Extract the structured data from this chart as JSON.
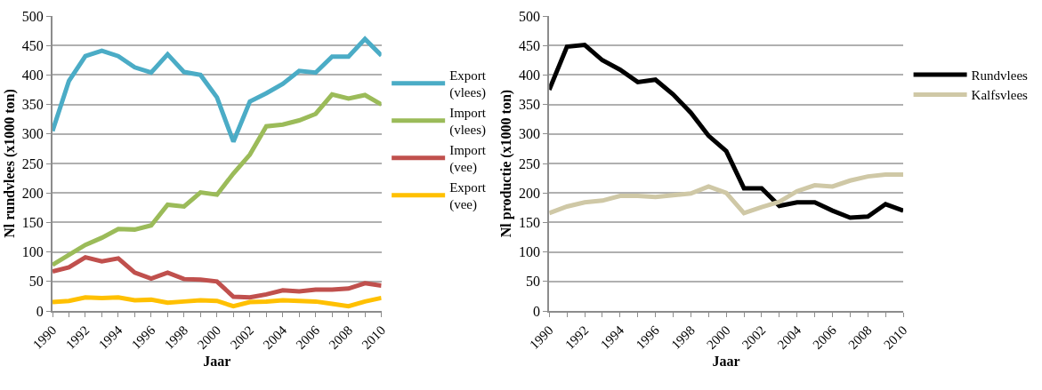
{
  "chart_data": [
    {
      "type": "line",
      "xlabel": "Jaar",
      "ylabel": "Nl rundvlees (x1000 ton)",
      "x": [
        1990,
        1991,
        1992,
        1993,
        1994,
        1995,
        1996,
        1997,
        1998,
        1999,
        2000,
        2001,
        2002,
        2003,
        2004,
        2005,
        2006,
        2007,
        2008,
        2009,
        2010
      ],
      "xlim": [
        1990,
        2010
      ],
      "xticks": [
        1990,
        {
          "value": 1991,
          "label": null
        },
        1992,
        {
          "value": 1993,
          "label": null
        },
        1994,
        {
          "value": 1995,
          "label": null
        },
        1996,
        {
          "value": 1997,
          "label": null
        },
        1998,
        {
          "value": 1999,
          "label": null
        },
        2000,
        {
          "value": 2001,
          "label": null
        },
        2002,
        {
          "value": 2003,
          "label": null
        },
        2004,
        {
          "value": 2005,
          "label": null
        },
        2006,
        {
          "value": 2007,
          "label": null
        },
        2008,
        {
          "value": 2009,
          "label": null
        },
        2010
      ],
      "ylim": [
        0,
        500
      ],
      "yticks": [
        0,
        50,
        100,
        150,
        200,
        250,
        300,
        350,
        400,
        450,
        500
      ],
      "grid": "y",
      "legend": "right",
      "series": [
        {
          "name": "Export (vlees)",
          "color": "#4bacc6",
          "values": [
            305,
            390,
            432,
            441,
            432,
            413,
            404,
            435,
            405,
            400,
            362,
            287,
            355,
            369,
            385,
            407,
            404,
            431,
            431,
            461,
            433
          ]
        },
        {
          "name": "Import (vlees)",
          "color": "#9bbb59",
          "values": [
            78,
            95,
            112,
            124,
            139,
            138,
            145,
            180,
            177,
            201,
            197,
            233,
            265,
            313,
            316,
            323,
            334,
            367,
            360,
            366,
            350
          ]
        },
        {
          "name": "Import (vee)",
          "color": "#c0504d",
          "values": [
            67,
            74,
            91,
            84,
            89,
            65,
            55,
            65,
            54,
            53,
            50,
            24,
            23,
            28,
            35,
            33,
            36,
            36,
            38,
            47,
            43
          ]
        },
        {
          "name": "Export (vee)",
          "color": "#ffc000",
          "values": [
            15,
            17,
            23,
            22,
            23,
            18,
            19,
            14,
            16,
            18,
            17,
            8,
            15,
            16,
            18,
            17,
            16,
            12,
            8,
            16,
            22
          ]
        }
      ]
    },
    {
      "type": "line",
      "xlabel": "Jaar",
      "ylabel": "Nl productie (x1000 ton)",
      "x": [
        1990,
        1991,
        1992,
        1993,
        1994,
        1995,
        1996,
        1997,
        1998,
        1999,
        2000,
        2001,
        2002,
        2003,
        2004,
        2005,
        2006,
        2007,
        2008,
        2009,
        2010
      ],
      "xlim": [
        1990,
        2010
      ],
      "xticks": [
        1990,
        {
          "value": 1991,
          "label": null
        },
        1992,
        {
          "value": 1993,
          "label": null
        },
        1994,
        {
          "value": 1995,
          "label": null
        },
        1996,
        {
          "value": 1997,
          "label": null
        },
        1998,
        {
          "value": 1999,
          "label": null
        },
        2000,
        {
          "value": 2001,
          "label": null
        },
        2002,
        {
          "value": 2003,
          "label": null
        },
        2004,
        {
          "value": 2005,
          "label": null
        },
        2006,
        {
          "value": 2007,
          "label": null
        },
        2008,
        {
          "value": 2009,
          "label": null
        },
        2010
      ],
      "ylim": [
        0,
        500
      ],
      "yticks": [
        0,
        50,
        100,
        150,
        200,
        250,
        300,
        350,
        400,
        450,
        500
      ],
      "grid": "y",
      "legend": "right",
      "series": [
        {
          "name": "Rundvlees",
          "color": "#000000",
          "values": [
            375,
            448,
            451,
            425,
            409,
            388,
            392,
            367,
            336,
            297,
            271,
            208,
            208,
            178,
            184,
            184,
            170,
            158,
            160,
            181,
            170
          ]
        },
        {
          "name": "Kalfsvlees",
          "color": "#cfc8a6",
          "values": [
            166,
            177,
            184,
            187,
            195,
            195,
            193,
            196,
            199,
            211,
            200,
            166,
            176,
            185,
            203,
            213,
            211,
            221,
            228,
            231,
            231
          ]
        }
      ]
    }
  ]
}
